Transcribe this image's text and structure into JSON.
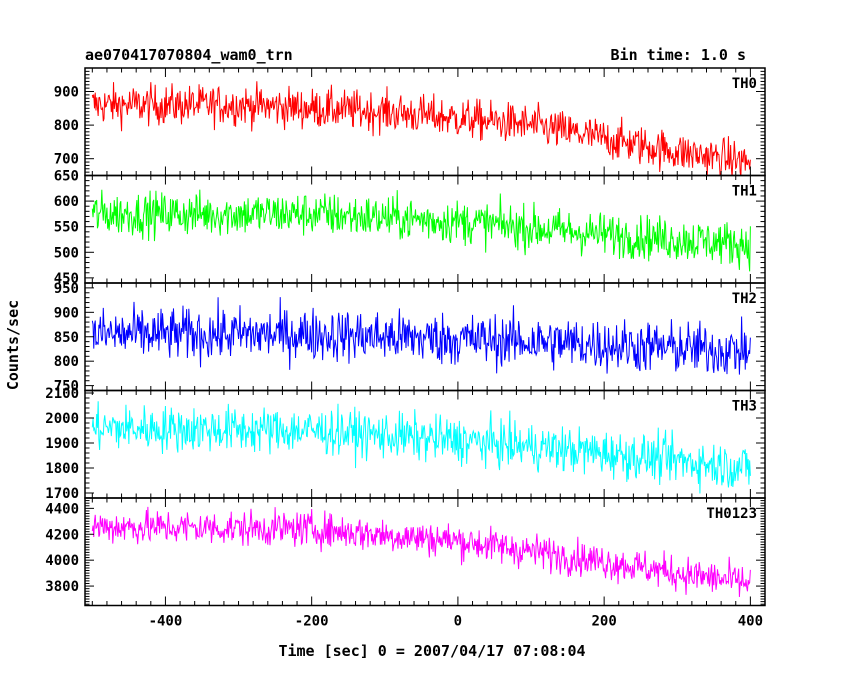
{
  "header": {
    "title": "ae070417070804_wam0_trn",
    "bin_time": "Bin time: 1.0 s"
  },
  "chart_data": {
    "type": "line",
    "xlabel": "Time [sec] 0 = 2007/04/17 07:08:04",
    "ylabel": "Counts/sec",
    "xlim": [
      -510,
      420
    ],
    "x_ticks": [
      -400,
      -200,
      0,
      200,
      400
    ],
    "x_start": -500,
    "x_end": 400,
    "x_step": 1,
    "panels": [
      {
        "name": "TH0",
        "color": "#ff0000",
        "ylim": [
          650,
          970
        ],
        "y_ticks": [
          650,
          700,
          800,
          900
        ],
        "trend": [
          [
            -500,
            860
          ],
          [
            -300,
            860
          ],
          [
            -100,
            840
          ],
          [
            100,
            800
          ],
          [
            200,
            760
          ],
          [
            300,
            720
          ],
          [
            400,
            690
          ]
        ],
        "noise": 42
      },
      {
        "name": "TH1",
        "color": "#00ff00",
        "ylim": [
          440,
          650
        ],
        "y_ticks": [
          450,
          500,
          550,
          600
        ],
        "trend": [
          [
            -500,
            575
          ],
          [
            -200,
            575
          ],
          [
            0,
            560
          ],
          [
            200,
            535
          ],
          [
            400,
            515
          ]
        ],
        "noise": 30
      },
      {
        "name": "TH2",
        "color": "#0000ff",
        "ylim": [
          740,
          960
        ],
        "y_ticks": [
          750,
          800,
          850,
          900,
          950
        ],
        "trend": [
          [
            -500,
            855
          ],
          [
            -200,
            855
          ],
          [
            100,
            840
          ],
          [
            400,
            820
          ]
        ],
        "noise": 38
      },
      {
        "name": "TH3",
        "color": "#00ffff",
        "ylim": [
          1680,
          2110
        ],
        "y_ticks": [
          1700,
          1800,
          1900,
          2000,
          2100
        ],
        "trend": [
          [
            -500,
            1960
          ],
          [
            -200,
            1950
          ],
          [
            0,
            1910
          ],
          [
            200,
            1860
          ],
          [
            400,
            1800
          ]
        ],
        "noise": 65
      },
      {
        "name": "TH0123",
        "color": "#ff00ff",
        "ylim": [
          3650,
          4480
        ],
        "y_ticks": [
          3800,
          4000,
          4200,
          4400
        ],
        "trend": [
          [
            -500,
            4260
          ],
          [
            -200,
            4240
          ],
          [
            0,
            4150
          ],
          [
            100,
            4070
          ],
          [
            200,
            3990
          ],
          [
            300,
            3900
          ],
          [
            400,
            3820
          ]
        ],
        "noise": 95
      }
    ]
  }
}
